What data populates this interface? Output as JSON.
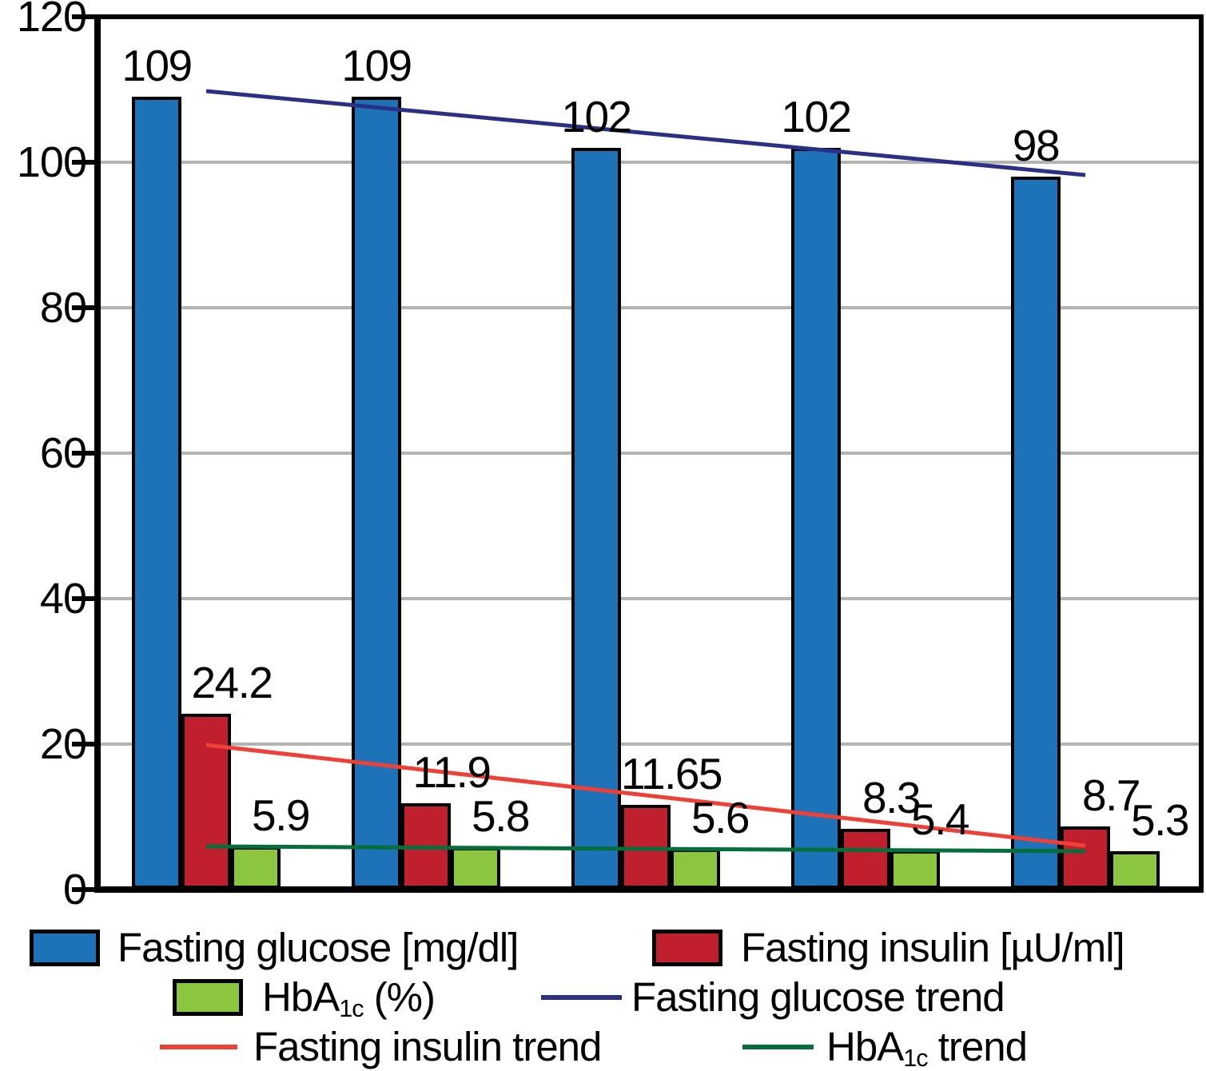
{
  "chart_data": {
    "type": "bar",
    "title": "",
    "groups": 5,
    "ylim": [
      0,
      120
    ],
    "yticks": [
      0,
      20,
      40,
      60,
      80,
      100,
      120
    ],
    "ytick_labels": [
      "0",
      "20",
      "40",
      "60",
      "80",
      "100",
      "120"
    ],
    "grid": true,
    "legend_position": "bottom",
    "series": [
      {
        "key": "fasting-glucose",
        "name": "Fasting glucose [mg/dl]",
        "color": "#1E73B8",
        "values": [
          109,
          109,
          102,
          102,
          98
        ],
        "value_labels": [
          "109",
          "109",
          "102",
          "102",
          "98"
        ]
      },
      {
        "key": "fasting-insulin",
        "name": "Fasting insulin [µU/ml]",
        "color": "#C0202E",
        "values": [
          24.2,
          11.9,
          11.65,
          8.3,
          8.7
        ],
        "value_labels": [
          "24.2",
          "11.9",
          "11.65",
          "8.3",
          "8.7"
        ]
      },
      {
        "key": "hba1c",
        "name": "HbA1c (%)",
        "color": "#8CC63F",
        "values": [
          5.9,
          5.8,
          5.6,
          5.4,
          5.3
        ],
        "value_labels": [
          "5.9",
          "5.8",
          "5.6",
          "5.4",
          "5.3"
        ]
      }
    ],
    "trend_lines": [
      {
        "key": "fasting-glucose-trend",
        "name": "Fasting glucose trend",
        "color": "#2B3087",
        "start_value": 109.8,
        "end_value": 98.2
      },
      {
        "key": "fasting-insulin-trend",
        "name": "Fasting insulin trend",
        "color": "#EE4035",
        "start_value": 19.9,
        "end_value": 6.0
      },
      {
        "key": "hba1c-trend",
        "name": "HbA1c trend",
        "color": "#056F3C",
        "start_value": 5.9,
        "end_value": 5.3
      }
    ]
  },
  "legend": {
    "items": [
      {
        "key": "fasting-glucose",
        "marker": "box",
        "color": "#1E73B8",
        "label": "Fasting glucose [mg/dl]"
      },
      {
        "key": "fasting-insulin",
        "marker": "box",
        "color": "#C0202E",
        "label": "Fasting insulin [µU/ml]"
      },
      {
        "key": "hba1c",
        "marker": "box",
        "color": "#8CC63F",
        "label_pre": "HbA",
        "label_sub": "1c",
        "label_post": " (%)"
      },
      {
        "key": "fasting-glucose-trend",
        "marker": "line",
        "color": "#2B3087",
        "label": "Fasting glucose trend"
      },
      {
        "key": "fasting-insulin-trend",
        "marker": "line",
        "color": "#EE4035",
        "label": "Fasting insulin trend"
      },
      {
        "key": "hba1c-trend",
        "marker": "line",
        "color": "#056F3C",
        "label_pre": "HbA",
        "label_sub": "1c",
        "label_post": " trend"
      }
    ]
  },
  "colors": {
    "axis": "#000000",
    "grid": "#B3B3B3",
    "glucose_bar": "#1E73B8",
    "insulin_bar": "#C0202E",
    "hba1c_bar": "#8CC63F",
    "glucose_trend": "#2B3087",
    "insulin_trend": "#EE4035",
    "hba1c_trend": "#056F3C"
  }
}
